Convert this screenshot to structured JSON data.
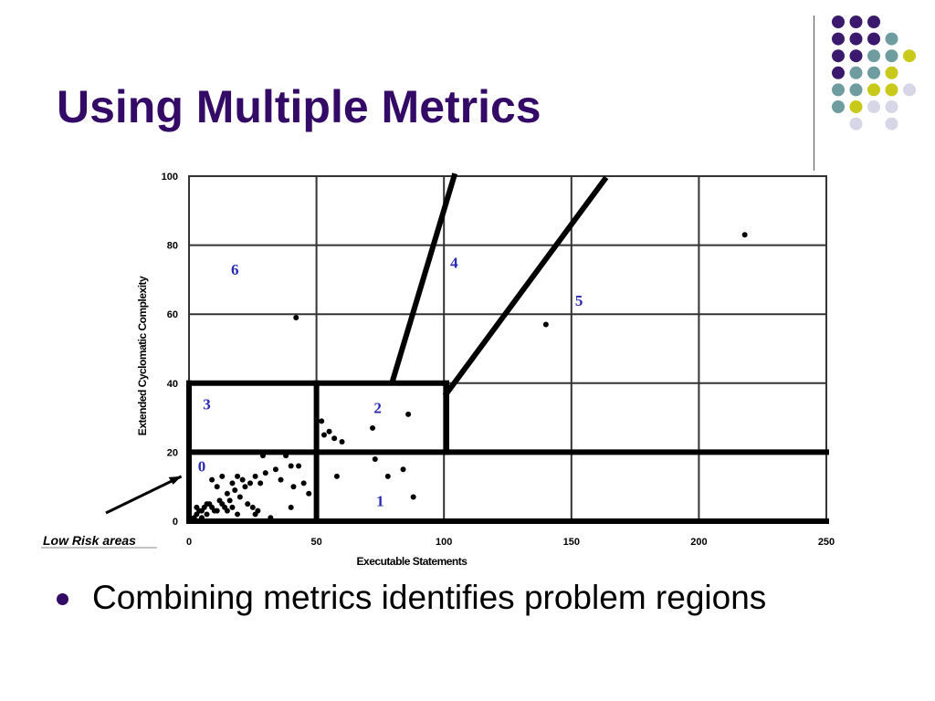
{
  "slide": {
    "title": "Using Multiple Metrics",
    "bullet_text": "Combining metrics identifies problem regions"
  },
  "colors": {
    "title": "#330a66",
    "dot_palette": [
      "#3b1a6e",
      "#6f9c9e",
      "#c9c91a",
      "#d6d6e6"
    ]
  },
  "chart_data": {
    "type": "scatter",
    "xlabel": "Executable Statements",
    "ylabel": "Extended Cyclomatic Complexity",
    "xlim": [
      0,
      250
    ],
    "ylim": [
      0,
      100
    ],
    "x_ticks": [
      0,
      50,
      100,
      150,
      200,
      250
    ],
    "y_ticks": [
      0,
      20,
      40,
      60,
      80,
      100
    ],
    "grid": true,
    "points": [
      [
        2,
        1
      ],
      [
        3,
        2
      ],
      [
        4,
        3
      ],
      [
        5,
        1
      ],
      [
        6,
        4
      ],
      [
        3,
        4
      ],
      [
        7,
        2
      ],
      [
        8,
        5
      ],
      [
        10,
        3
      ],
      [
        12,
        6
      ],
      [
        14,
        4
      ],
      [
        15,
        8
      ],
      [
        16,
        6
      ],
      [
        18,
        9
      ],
      [
        20,
        7
      ],
      [
        22,
        10
      ],
      [
        9,
        12
      ],
      [
        11,
        10
      ],
      [
        13,
        13
      ],
      [
        17,
        11
      ],
      [
        19,
        13
      ],
      [
        21,
        12
      ],
      [
        24,
        11
      ],
      [
        26,
        13
      ],
      [
        28,
        11
      ],
      [
        30,
        14
      ],
      [
        29,
        19
      ],
      [
        34,
        15
      ],
      [
        36,
        12
      ],
      [
        38,
        19
      ],
      [
        40,
        16
      ],
      [
        41,
        10
      ],
      [
        43,
        16
      ],
      [
        40,
        4
      ],
      [
        26,
        2
      ],
      [
        32,
        1
      ],
      [
        45,
        11
      ],
      [
        47,
        8
      ],
      [
        5,
        3
      ],
      [
        7,
        5
      ],
      [
        9,
        4
      ],
      [
        11,
        3
      ],
      [
        13,
        5
      ],
      [
        15,
        3
      ],
      [
        17,
        4
      ],
      [
        19,
        2
      ],
      [
        23,
        5
      ],
      [
        25,
        4
      ],
      [
        27,
        3
      ],
      [
        52,
        29
      ],
      [
        53,
        25
      ],
      [
        55,
        26
      ],
      [
        57,
        24
      ],
      [
        60,
        23
      ],
      [
        58,
        13
      ],
      [
        72,
        27
      ],
      [
        73,
        18
      ],
      [
        78,
        13
      ],
      [
        84,
        15
      ],
      [
        86,
        31
      ],
      [
        88,
        7
      ],
      [
        42,
        59
      ],
      [
        140,
        57
      ],
      [
        218,
        83
      ]
    ],
    "region_lines": [
      {
        "from": [
          0,
          0
        ],
        "to": [
          250,
          0
        ]
      },
      {
        "from": [
          0,
          0
        ],
        "to": [
          0,
          40
        ]
      },
      {
        "from": [
          0,
          20
        ],
        "to": [
          250,
          20
        ]
      },
      {
        "from": [
          0,
          40
        ],
        "to": [
          101,
          40
        ]
      },
      {
        "from": [
          50,
          0
        ],
        "to": [
          50,
          40
        ]
      },
      {
        "from": [
          101,
          20
        ],
        "to": [
          101,
          40
        ]
      },
      {
        "from": [
          80,
          41
        ],
        "to": [
          104,
          100
        ]
      },
      {
        "from": [
          101,
          37
        ],
        "to": [
          163,
          99
        ]
      }
    ],
    "regions": [
      {
        "label": "0",
        "x": 5,
        "y": 16
      },
      {
        "label": "1",
        "x": 75,
        "y": 6
      },
      {
        "label": "2",
        "x": 74,
        "y": 33
      },
      {
        "label": "3",
        "x": 7,
        "y": 34
      },
      {
        "label": "4",
        "x": 104,
        "y": 75
      },
      {
        "label": "5",
        "x": 153,
        "y": 64
      },
      {
        "label": "6",
        "x": 18,
        "y": 73
      }
    ],
    "annotation": {
      "text": "Low Risk areas",
      "points_to": [
        -3,
        13
      ]
    }
  }
}
